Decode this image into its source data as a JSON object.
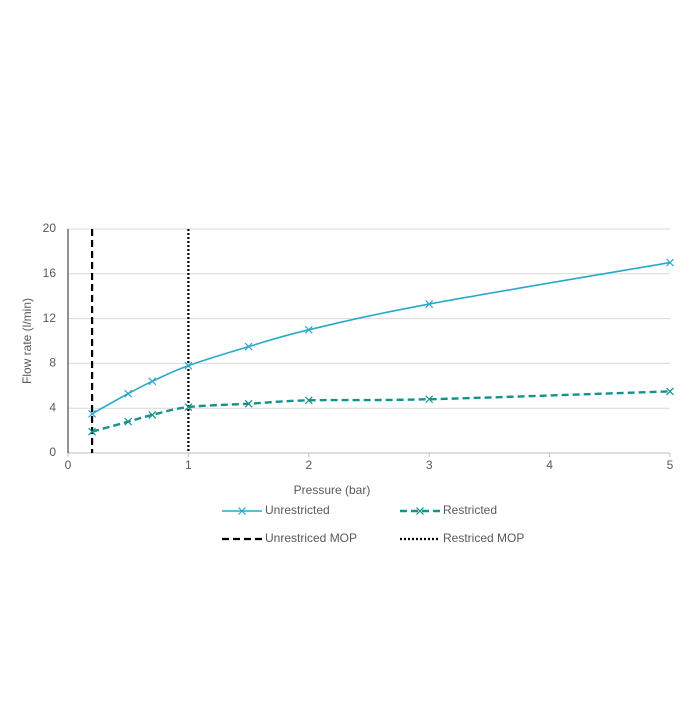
{
  "chart_data": {
    "type": "line",
    "x_label": "Pressure (bar)",
    "y_label": "Flow rate (l/min)",
    "x": [
      0.2,
      0.5,
      0.7,
      1,
      1.5,
      2,
      3,
      5
    ],
    "series": [
      {
        "name": "Unrestricted",
        "color": "#2aa8c9",
        "dash": "solid",
        "values": [
          3.5,
          5.3,
          6.4,
          7.8,
          9.5,
          11,
          13.3,
          17
        ]
      },
      {
        "name": "Restricted",
        "color": "#15928a",
        "dash": "dashed",
        "values": [
          1.9,
          2.8,
          3.4,
          4.1,
          4.4,
          4.7,
          4.8,
          5.5
        ]
      }
    ],
    "vlines": [
      {
        "name": "Unrestriced MOP",
        "x": 0.2,
        "color": "#000000",
        "dash": "dashed"
      },
      {
        "name": "Restriced MOP",
        "x": 1,
        "color": "#000000",
        "dash": "dotted"
      }
    ],
    "xlim": [
      0,
      5
    ],
    "xticks": [
      0,
      1,
      2,
      3,
      4,
      5
    ],
    "ylim": [
      0,
      20
    ],
    "yticks": [
      0,
      4,
      8,
      12,
      16,
      20
    ],
    "grid": true,
    "legend": "bottom",
    "marker": "x"
  }
}
